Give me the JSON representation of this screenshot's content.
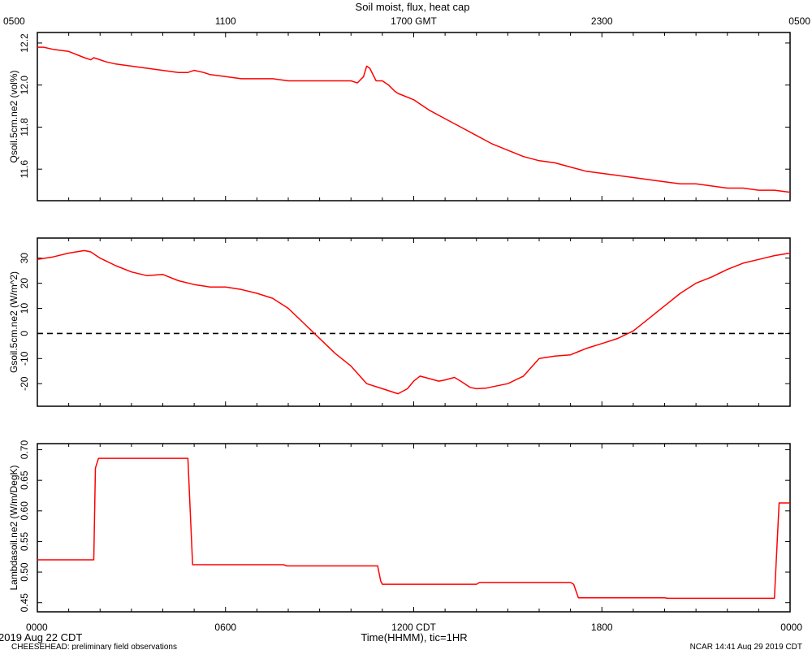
{
  "header": {
    "title": "Soil moist, flux, heat cap",
    "top_axis_ticks": [
      "0500",
      "1100",
      "1700 GMT",
      "2300",
      "0500"
    ]
  },
  "footer": {
    "date_label": "2019 Aug 22 CDT",
    "project_note": "CHEESEHEAD: preliminary field observations",
    "generated": "NCAR 14:41 Aug 29 2019 CDT",
    "xlabel": "Time(HHMM), tic=1HR",
    "bottom_axis_ticks": [
      "0000",
      "0600",
      "1200 CDT",
      "1800",
      "0000"
    ]
  },
  "colors": {
    "series": "#ff0000",
    "zero_line": "#000000"
  },
  "chart_data": [
    {
      "type": "line",
      "ylabel": "Qsoil.5cm.ne2 (vol%)",
      "xlim": [
        0,
        24
      ],
      "ylim": [
        11.45,
        12.25
      ],
      "yticks": [
        11.6,
        11.8,
        12.0,
        12.2
      ],
      "ytick_labels": [
        "11.6",
        "11.8",
        "12.0",
        "12.2"
      ],
      "grid": false,
      "zero_line": false,
      "series": [
        {
          "x": [
            0,
            0.2,
            0.5,
            1.0,
            1.5,
            1.7,
            1.8,
            2.2,
            2.5,
            3.0,
            3.5,
            4.0,
            4.5,
            4.8,
            5.0,
            5.3,
            5.5,
            6.0,
            6.5,
            7.0,
            7.5,
            8.0,
            8.3,
            8.5,
            9.0,
            9.5,
            10.0,
            10.2,
            10.4,
            10.5,
            10.6,
            10.8,
            11.0,
            11.2,
            11.4,
            11.5,
            12.0,
            12.5,
            13.0,
            13.5,
            14.0,
            14.5,
            15.0,
            15.5,
            16.0,
            16.5,
            17.0,
            17.5,
            18.0,
            18.5,
            19.0,
            19.5,
            20.0,
            20.5,
            21.0,
            21.5,
            22.0,
            22.5,
            23.0,
            23.5,
            24.0
          ],
          "values": [
            12.18,
            12.18,
            12.17,
            12.16,
            12.13,
            12.12,
            12.13,
            12.11,
            12.1,
            12.09,
            12.08,
            12.07,
            12.06,
            12.06,
            12.07,
            12.06,
            12.05,
            12.04,
            12.03,
            12.03,
            12.03,
            12.02,
            12.02,
            12.02,
            12.02,
            12.02,
            12.02,
            12.01,
            12.04,
            12.09,
            12.08,
            12.02,
            12.02,
            12.0,
            11.97,
            11.96,
            11.93,
            11.88,
            11.84,
            11.8,
            11.76,
            11.72,
            11.69,
            11.66,
            11.64,
            11.63,
            11.61,
            11.59,
            11.58,
            11.57,
            11.56,
            11.55,
            11.54,
            11.53,
            11.53,
            11.52,
            11.51,
            11.51,
            11.5,
            11.5,
            11.49
          ]
        }
      ]
    },
    {
      "type": "line",
      "ylabel": "Gsoil.5cm.ne2 (W/m^2)",
      "xlim": [
        0,
        24
      ],
      "ylim": [
        -29,
        38
      ],
      "yticks": [
        -20,
        -10,
        0,
        10,
        20,
        30
      ],
      "ytick_labels": [
        "-20",
        "-10",
        "0",
        "10",
        "20",
        "30"
      ],
      "grid": false,
      "zero_line": true,
      "series": [
        {
          "x": [
            0,
            0.5,
            1.0,
            1.5,
            1.7,
            2.0,
            2.5,
            3.0,
            3.5,
            4.0,
            4.5,
            5.0,
            5.5,
            6.0,
            6.5,
            7.0,
            7.5,
            8.0,
            8.5,
            9.0,
            9.5,
            10.0,
            10.5,
            11.0,
            11.5,
            11.8,
            12.0,
            12.2,
            12.5,
            12.8,
            13.0,
            13.3,
            13.5,
            13.8,
            14.0,
            14.3,
            14.6,
            15.0,
            15.5,
            16.0,
            16.5,
            17.0,
            17.3,
            17.5,
            18.0,
            18.5,
            19.0,
            19.5,
            20.0,
            20.5,
            21.0,
            21.5,
            22.0,
            22.5,
            23.0,
            23.5,
            24.0
          ],
          "values": [
            29.5,
            30.5,
            32.0,
            33.0,
            32.5,
            30.0,
            27.0,
            24.5,
            23.0,
            23.5,
            21.0,
            19.5,
            18.5,
            18.5,
            17.5,
            16.0,
            14.0,
            10.0,
            4.0,
            -2.0,
            -8.0,
            -13.0,
            -20.0,
            -22.0,
            -24.0,
            -22.0,
            -19.0,
            -17.0,
            -18.0,
            -19.0,
            -18.5,
            -17.5,
            -19.0,
            -21.5,
            -22.0,
            -21.8,
            -21.0,
            -20.0,
            -17.0,
            -10.0,
            -9.0,
            -8.5,
            -7.0,
            -6.0,
            -4.0,
            -2.0,
            1.0,
            6.0,
            11.0,
            16.0,
            20.0,
            22.5,
            25.5,
            28.0,
            29.5,
            31.0,
            32.0
          ]
        }
      ]
    },
    {
      "type": "line",
      "ylabel": "Lambdasoil.ne2 (W/m/DegK)",
      "xlim": [
        0,
        24
      ],
      "ylim": [
        0.435,
        0.71
      ],
      "yticks": [
        0.45,
        0.5,
        0.55,
        0.6,
        0.65,
        0.7
      ],
      "ytick_labels": [
        "0.45",
        "0.50",
        "0.55",
        "0.60",
        "0.65",
        "0.70"
      ],
      "grid": false,
      "zero_line": false,
      "series": [
        {
          "x": [
            0,
            1.8,
            1.85,
            1.95,
            4.8,
            4.95,
            7.85,
            7.95,
            10.85,
            10.95,
            11.0,
            14.0,
            14.1,
            17.0,
            17.1,
            17.25,
            20.0,
            20.1,
            23.5,
            23.65,
            24.0
          ],
          "values": [
            0.52,
            0.52,
            0.67,
            0.686,
            0.686,
            0.512,
            0.512,
            0.51,
            0.51,
            0.485,
            0.48,
            0.48,
            0.483,
            0.483,
            0.48,
            0.458,
            0.458,
            0.457,
            0.457,
            0.613,
            0.613
          ]
        }
      ]
    }
  ]
}
